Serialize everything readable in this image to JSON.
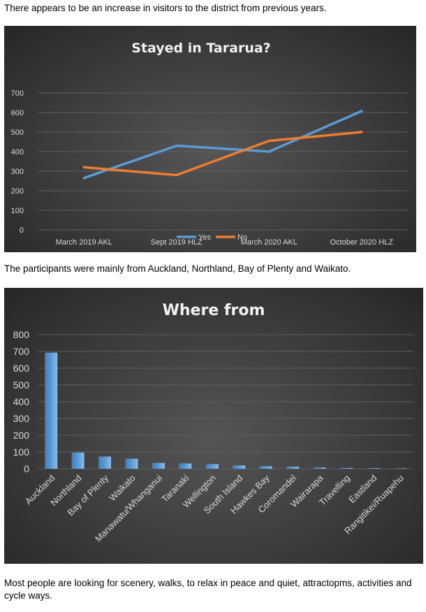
{
  "text": {
    "p1": "There appears to be an increase in visitors to the district from previous years.",
    "p2": "The participants were mainly from Auckland, Northland, Bay of Plenty and Waikato.",
    "p3": "Most people are looking for scenery, walks, to relax in peace and quiet, attractopms, activities and cycle ways."
  },
  "chart_data": [
    {
      "type": "line",
      "title": "Stayed in Tararua?",
      "categories": [
        "March 2019 AKL",
        "Sept 2019 HLZ",
        "March 2020 AKL",
        "October 2020 HLZ"
      ],
      "series": [
        {
          "name": "Yes",
          "values": [
            265,
            430,
            400,
            607
          ],
          "color": "#5b9bd5"
        },
        {
          "name": "No",
          "values": [
            320,
            280,
            455,
            500
          ],
          "color": "#ed7d31"
        }
      ],
      "ylim": [
        0,
        700
      ],
      "yticks": [
        0,
        100,
        200,
        300,
        400,
        500,
        600,
        700
      ],
      "grid": true,
      "legend": "bottom"
    },
    {
      "type": "bar",
      "title": "Where from",
      "categories": [
        "Auckland",
        "Northland",
        "Bay of Plenty",
        "Waikato",
        "Manawatu/Whanganui",
        "Taranaki",
        "Wellington",
        "South Island",
        "Hawkes Bay",
        "Coromandel",
        "Wairarapa",
        "Travelling",
        "Eastland",
        "Rangitikei/Ruapehu"
      ],
      "values": [
        693,
        97,
        73,
        60,
        35,
        32,
        28,
        20,
        15,
        13,
        8,
        5,
        4,
        3
      ],
      "color": "#5b9bd5",
      "ylim": [
        0,
        800
      ],
      "yticks": [
        0,
        100,
        200,
        300,
        400,
        500,
        600,
        700,
        800
      ],
      "grid": true
    }
  ]
}
